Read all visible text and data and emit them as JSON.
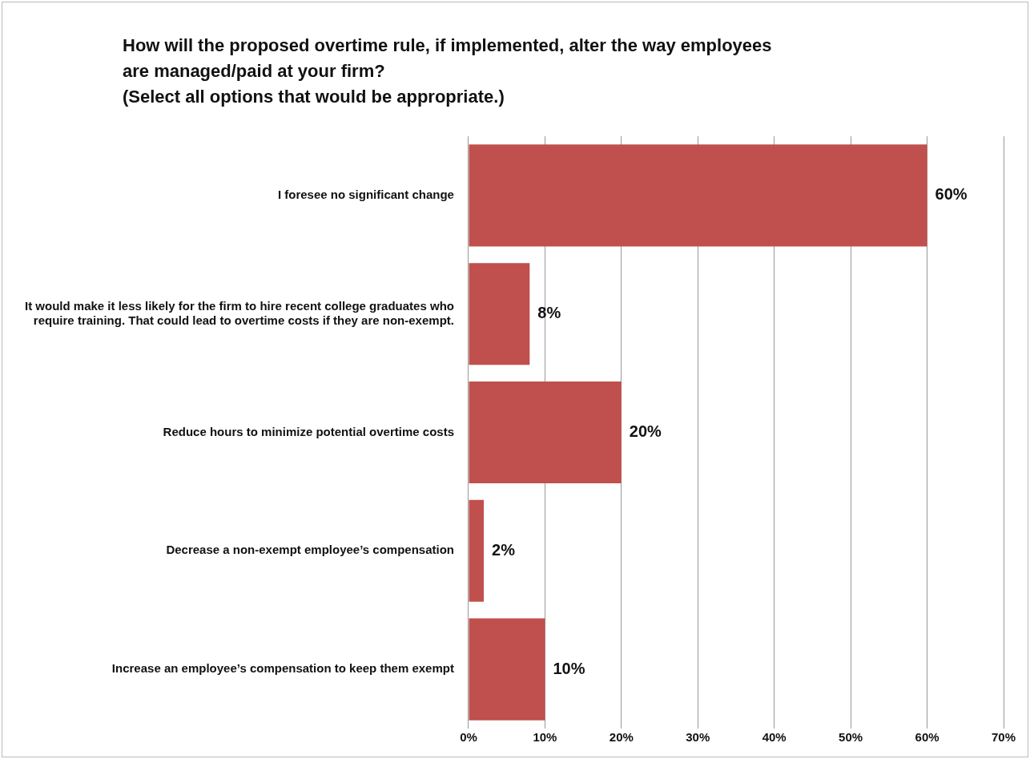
{
  "chart_data": {
    "type": "bar",
    "orientation": "horizontal",
    "title": "How will the proposed overtime rule, if implemented, alter the way employees are managed/paid at your firm?",
    "subtitle": "(Select all options that would be appropriate.)",
    "categories": [
      "I foresee no significant change",
      "It would make it less likely for the firm to hire recent college graduates who require training. That could lead to overtime costs if they are non-exempt.",
      "Reduce hours to minimize potential overtime costs",
      "Decrease a non-exempt employee’s compensation",
      "Increase an employee’s compensation to keep them exempt"
    ],
    "values": [
      60,
      8,
      20,
      2,
      10
    ],
    "color": "#c0504d",
    "value_labels": [
      "60%",
      "8%",
      "20%",
      "2%",
      "10%"
    ],
    "xlim": [
      0,
      70
    ],
    "xticks": [
      {
        "value": 0,
        "label": "0%"
      },
      {
        "value": 10,
        "label": "10%"
      },
      {
        "value": 20,
        "label": "20%"
      },
      {
        "value": 30,
        "label": "30%"
      },
      {
        "value": 40,
        "label": "40%"
      },
      {
        "value": 50,
        "label": "50%"
      },
      {
        "value": 60,
        "label": "60%"
      },
      {
        "value": 70,
        "label": "70%"
      }
    ],
    "grid": "x",
    "legend": false
  }
}
